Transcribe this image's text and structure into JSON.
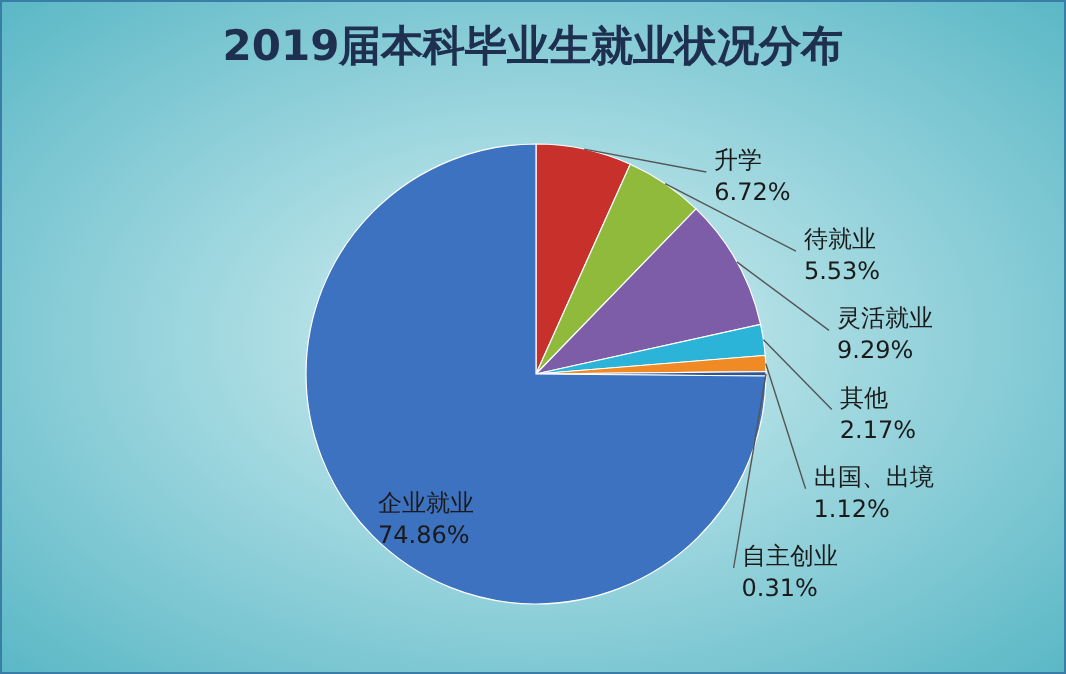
{
  "chart_data": {
    "type": "pie",
    "title": "2019届本科毕业生就业状况分布",
    "categories": [
      "升学",
      "待就业",
      "灵活就业",
      "其他",
      "出国、出境",
      "自主创业",
      "企业就业"
    ],
    "values": [
      6.72,
      5.53,
      9.29,
      2.17,
      1.12,
      0.31,
      74.86
    ],
    "colors": [
      "#c8302b",
      "#8fba3c",
      "#7d5ca8",
      "#2bb4d8",
      "#f08a24",
      "#2f5597",
      "#3d72c0"
    ],
    "value_labels": [
      "6.72%",
      "5.53%",
      "9.29%",
      "2.17%",
      "1.12%",
      "0.31%",
      "74.86%"
    ]
  }
}
